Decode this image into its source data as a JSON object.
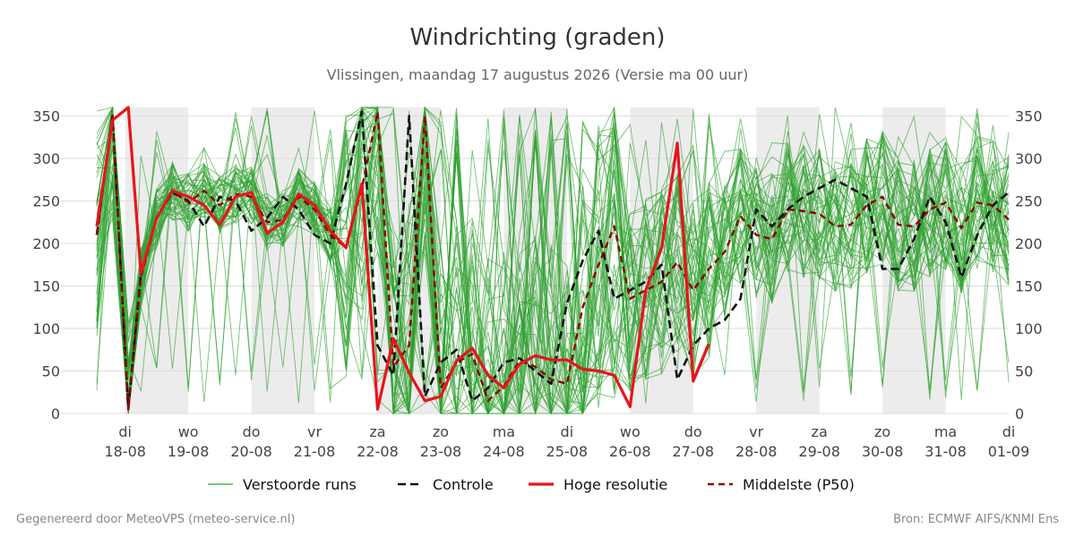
{
  "header": {
    "title": "Windrichting (graden)",
    "subtitle": "Vlissingen, maandag 17 augustus 2026 (Versie ma 00 uur)"
  },
  "footer": {
    "left": "Gegenereerd door MeteoVPS (meteo-service.nl)",
    "right": "Bron: ECMWF AIFS/KNMI Ens"
  },
  "colors": {
    "ensemble": "#2ca02c",
    "control": "#111111",
    "high_res": "#e8141b",
    "median": "#8b0000",
    "weekend_band": "#ececec",
    "grid": "#dddddd"
  },
  "chart_data": {
    "type": "line",
    "title": "Windrichting (graden)",
    "subtitle": "Vlissingen, maandag 17 augustus 2026 (Versie ma 00 uur)",
    "xlabel": "",
    "ylabel": "",
    "x_unit": "days since 17-08-2026 00:00",
    "xlim": [
      0.55,
      15.0
    ],
    "ylim": [
      0,
      360
    ],
    "y_ticks": [
      0,
      50,
      100,
      150,
      200,
      250,
      300,
      350
    ],
    "grid": "horizontal",
    "legend_position": "bottom",
    "x_ticks": [
      {
        "x": 1,
        "day": "di",
        "date": "18-08"
      },
      {
        "x": 2,
        "day": "wo",
        "date": "19-08"
      },
      {
        "x": 3,
        "day": "do",
        "date": "20-08"
      },
      {
        "x": 4,
        "day": "vr",
        "date": "21-08"
      },
      {
        "x": 5,
        "day": "za",
        "date": "22-08"
      },
      {
        "x": 6,
        "day": "zo",
        "date": "23-08"
      },
      {
        "x": 7,
        "day": "ma",
        "date": "24-08"
      },
      {
        "x": 8,
        "day": "di",
        "date": "25-08"
      },
      {
        "x": 9,
        "day": "wo",
        "date": "26-08"
      },
      {
        "x": 10,
        "day": "do",
        "date": "27-08"
      },
      {
        "x": 11,
        "day": "vr",
        "date": "28-08"
      },
      {
        "x": 12,
        "day": "za",
        "date": "29-08"
      },
      {
        "x": 13,
        "day": "zo",
        "date": "30-08"
      },
      {
        "x": 14,
        "day": "ma",
        "date": "31-08"
      },
      {
        "x": 15,
        "day": "di",
        "date": "01-09"
      }
    ],
    "shaded_bands": [
      [
        1,
        2
      ],
      [
        3,
        4
      ],
      [
        5,
        6
      ],
      [
        7,
        8
      ],
      [
        9,
        10
      ],
      [
        11,
        12
      ],
      [
        13,
        14
      ]
    ],
    "legend": [
      {
        "key": "ensemble",
        "label": "Verstoorde runs"
      },
      {
        "key": "control",
        "label": "Controle"
      },
      {
        "key": "high_res",
        "label": "Hoge resolutie"
      },
      {
        "key": "median",
        "label": "Middelste (P50)"
      }
    ],
    "series": [
      {
        "name": "Controle",
        "key": "control",
        "points": [
          [
            0.55,
            210
          ],
          [
            0.8,
            350
          ],
          [
            1.05,
            5
          ],
          [
            1.25,
            165
          ],
          [
            1.5,
            230
          ],
          [
            1.75,
            260
          ],
          [
            2.0,
            250
          ],
          [
            2.25,
            220
          ],
          [
            2.5,
            255
          ],
          [
            2.75,
            250
          ],
          [
            3.0,
            215
          ],
          [
            3.25,
            230
          ],
          [
            3.5,
            255
          ],
          [
            3.75,
            240
          ],
          [
            4.0,
            210
          ],
          [
            4.25,
            200
          ],
          [
            4.5,
            270
          ],
          [
            4.75,
            355
          ],
          [
            5.0,
            80
          ],
          [
            5.25,
            45
          ],
          [
            5.5,
            350
          ],
          [
            5.75,
            20
          ],
          [
            6.0,
            60
          ],
          [
            6.25,
            75
          ],
          [
            6.5,
            15
          ],
          [
            6.75,
            30
          ],
          [
            7.0,
            60
          ],
          [
            7.25,
            65
          ],
          [
            7.5,
            50
          ],
          [
            7.75,
            35
          ],
          [
            8.0,
            130
          ],
          [
            8.25,
            180
          ],
          [
            8.5,
            215
          ],
          [
            8.75,
            135
          ],
          [
            9.0,
            145
          ],
          [
            9.25,
            155
          ],
          [
            9.5,
            175
          ],
          [
            9.75,
            40
          ],
          [
            10.0,
            80
          ],
          [
            10.25,
            100
          ],
          [
            10.5,
            110
          ],
          [
            10.75,
            135
          ],
          [
            11.0,
            240
          ],
          [
            11.25,
            220
          ],
          [
            11.5,
            240
          ],
          [
            11.75,
            255
          ],
          [
            12.0,
            265
          ],
          [
            12.25,
            275
          ],
          [
            12.5,
            265
          ],
          [
            12.75,
            255
          ],
          [
            13.0,
            170
          ],
          [
            13.25,
            170
          ],
          [
            13.5,
            205
          ],
          [
            13.75,
            255
          ],
          [
            14.0,
            225
          ],
          [
            14.25,
            160
          ],
          [
            14.5,
            210
          ],
          [
            14.75,
            245
          ],
          [
            15.0,
            260
          ]
        ]
      },
      {
        "name": "Hoge resolutie",
        "key": "high_res",
        "points": [
          [
            0.55,
            220
          ],
          [
            0.8,
            345
          ],
          [
            1.05,
            360
          ],
          [
            1.25,
            165
          ],
          [
            1.5,
            230
          ],
          [
            1.75,
            262
          ],
          [
            2.0,
            255
          ],
          [
            2.25,
            245
          ],
          [
            2.5,
            222
          ],
          [
            2.75,
            255
          ],
          [
            3.0,
            260
          ],
          [
            3.25,
            212
          ],
          [
            3.5,
            225
          ],
          [
            3.75,
            258
          ],
          [
            4.0,
            245
          ],
          [
            4.25,
            215
          ],
          [
            4.5,
            195
          ],
          [
            4.75,
            270
          ],
          [
            5.0,
            5
          ],
          [
            5.25,
            88
          ],
          [
            5.5,
            48
          ],
          [
            5.75,
            15
          ],
          [
            6.0,
            20
          ],
          [
            6.25,
            62
          ],
          [
            6.5,
            77
          ],
          [
            6.75,
            45
          ],
          [
            7.0,
            30
          ],
          [
            7.25,
            58
          ],
          [
            7.5,
            68
          ],
          [
            7.75,
            63
          ],
          [
            8.0,
            63
          ],
          [
            8.25,
            52
          ],
          [
            8.5,
            50
          ],
          [
            8.75,
            45
          ],
          [
            9.0,
            8
          ],
          [
            9.25,
            145
          ],
          [
            9.5,
            195
          ],
          [
            9.75,
            318
          ],
          [
            10.0,
            38
          ],
          [
            10.25,
            82
          ]
        ]
      },
      {
        "name": "Middelste (P50)",
        "key": "median",
        "points": [
          [
            0.55,
            210
          ],
          [
            0.8,
            350
          ],
          [
            1.05,
            5
          ],
          [
            1.25,
            160
          ],
          [
            1.5,
            230
          ],
          [
            1.75,
            262
          ],
          [
            2.0,
            248
          ],
          [
            2.25,
            262
          ],
          [
            2.5,
            245
          ],
          [
            2.75,
            258
          ],
          [
            3.0,
            255
          ],
          [
            3.25,
            225
          ],
          [
            3.5,
            228
          ],
          [
            3.75,
            255
          ],
          [
            4.0,
            240
          ],
          [
            4.25,
            210
          ],
          [
            4.5,
            195
          ],
          [
            4.75,
            265
          ],
          [
            5.0,
            355
          ],
          [
            5.25,
            55
          ],
          [
            5.5,
            80
          ],
          [
            5.75,
            350
          ],
          [
            6.0,
            30
          ],
          [
            6.25,
            60
          ],
          [
            6.5,
            70
          ],
          [
            6.75,
            15
          ],
          [
            7.0,
            32
          ],
          [
            7.25,
            62
          ],
          [
            7.5,
            55
          ],
          [
            7.75,
            40
          ],
          [
            8.0,
            35
          ],
          [
            8.25,
            125
          ],
          [
            8.5,
            175
          ],
          [
            8.75,
            220
          ],
          [
            9.0,
            135
          ],
          [
            9.25,
            145
          ],
          [
            9.5,
            155
          ],
          [
            9.75,
            178
          ],
          [
            10.0,
            145
          ],
          [
            10.25,
            170
          ],
          [
            10.5,
            190
          ],
          [
            10.75,
            232
          ],
          [
            11.0,
            210
          ],
          [
            11.25,
            205
          ],
          [
            11.5,
            240
          ],
          [
            11.75,
            238
          ],
          [
            12.0,
            235
          ],
          [
            12.25,
            220
          ],
          [
            12.5,
            222
          ],
          [
            12.75,
            245
          ],
          [
            13.0,
            255
          ],
          [
            13.25,
            222
          ],
          [
            13.5,
            220
          ],
          [
            13.75,
            240
          ],
          [
            14.0,
            248
          ],
          [
            14.25,
            218
          ],
          [
            14.5,
            248
          ],
          [
            14.75,
            245
          ],
          [
            15.0,
            228
          ]
        ]
      }
    ]
  }
}
